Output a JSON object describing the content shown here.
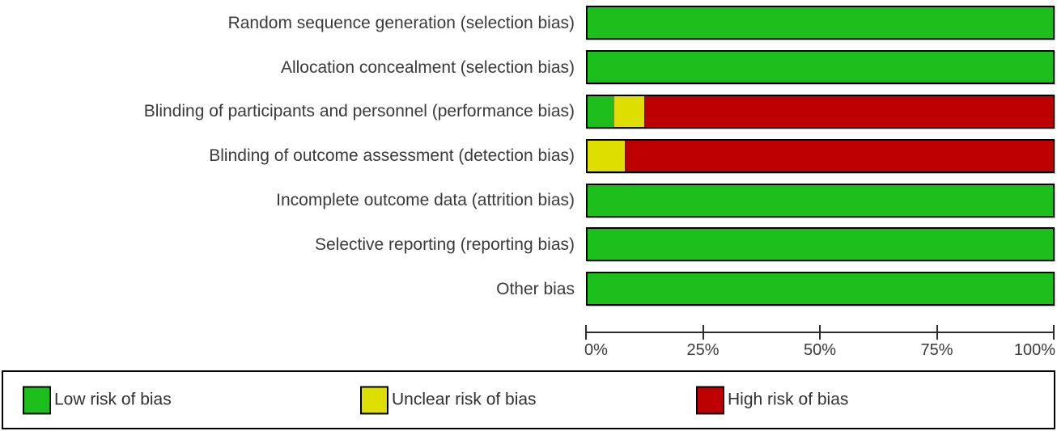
{
  "colors": {
    "low": "#1cbe1c",
    "unclear": "#dede00",
    "high": "#bd0000",
    "bar_border": "#000000",
    "axis": "#2d2d2d",
    "text": "#3a3a3a",
    "background": "#ffffff"
  },
  "chart_data": {
    "type": "bar",
    "stacked": true,
    "orientation": "horizontal",
    "grid": false,
    "xlim": [
      0,
      100
    ],
    "x_ticks": [
      "0%",
      "25%",
      "50%",
      "75%",
      "100%"
    ],
    "legend_position": "bottom",
    "categories": [
      "Random sequence generation (selection bias)",
      "Allocation concealment (selection bias)",
      "Blinding of participants and personnel (performance bias)",
      "Blinding of outcome assessment (detection bias)",
      "Incomplete outcome data (attrition bias)",
      "Selective reporting (reporting bias)",
      "Other bias"
    ],
    "series": [
      {
        "name": "Low risk of bias",
        "color": "#1cbe1c",
        "values": [
          100,
          100,
          5.6,
          0,
          100,
          100,
          100
        ]
      },
      {
        "name": "Unclear risk of bias",
        "color": "#dede00",
        "values": [
          0,
          0,
          6.6,
          8,
          0,
          0,
          0
        ]
      },
      {
        "name": "High risk of bias",
        "color": "#bd0000",
        "values": [
          0,
          0,
          87.8,
          92,
          0,
          0,
          0
        ]
      }
    ],
    "rows": [
      {
        "label": "Random sequence generation (selection bias)",
        "segments": [
          {
            "name": "Low risk of bias",
            "pct": 100
          }
        ]
      },
      {
        "label": "Allocation concealment (selection bias)",
        "segments": [
          {
            "name": "Low risk of bias",
            "pct": 100
          }
        ]
      },
      {
        "label": "Blinding of participants and personnel (performance bias)",
        "segments": [
          {
            "name": "Low risk of bias",
            "pct": 5.6
          },
          {
            "name": "Unclear risk of bias",
            "pct": 6.6
          },
          {
            "name": "High risk of bias",
            "pct": 87.8
          }
        ]
      },
      {
        "label": "Blinding of outcome assessment (detection bias)",
        "segments": [
          {
            "name": "Unclear risk of bias",
            "pct": 8
          },
          {
            "name": "High risk of bias",
            "pct": 92
          }
        ]
      },
      {
        "label": "Incomplete outcome data (attrition bias)",
        "segments": [
          {
            "name": "Low risk of bias",
            "pct": 100
          }
        ]
      },
      {
        "label": "Selective reporting (reporting bias)",
        "segments": [
          {
            "name": "Low risk of bias",
            "pct": 100
          }
        ]
      },
      {
        "label": "Other bias",
        "segments": [
          {
            "name": "Low risk of bias",
            "pct": 100
          }
        ]
      }
    ]
  },
  "legend": {
    "items": [
      {
        "label": "Low risk of bias"
      },
      {
        "label": "Unclear risk of bias"
      },
      {
        "label": "High risk of bias"
      }
    ]
  }
}
